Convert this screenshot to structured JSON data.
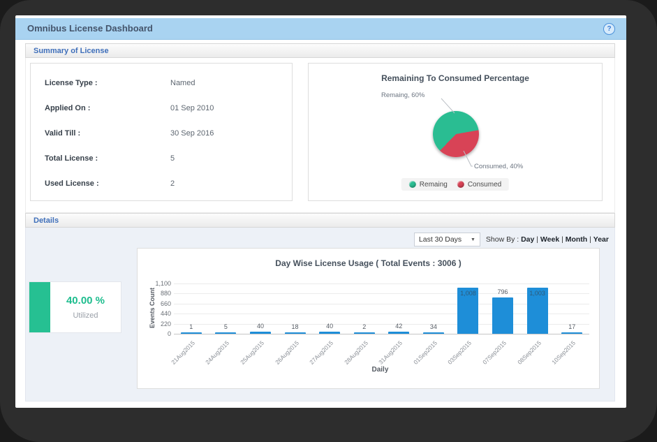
{
  "window": {
    "title": "Omnibus License Dashboard",
    "help_glyph": "?"
  },
  "summary": {
    "header": "Summary of License",
    "fields": [
      {
        "label": "License Type :",
        "value": "Named"
      },
      {
        "label": "Applied On :",
        "value": "01 Sep 2010"
      },
      {
        "label": "Valid Till :",
        "value": "30 Sep 2016"
      },
      {
        "label": "Total License :",
        "value": "5"
      },
      {
        "label": "Used License :",
        "value": "2"
      }
    ]
  },
  "details": {
    "header": "Details",
    "range_value": "Last 30 Days",
    "select_arrow": "▼",
    "show_by_label": "Show By :",
    "show_by_options": [
      "Day",
      "Week",
      "Month",
      "Year"
    ],
    "show_by_separator": " | ",
    "utilization": {
      "percent": "40.00 %",
      "label": "Utilized",
      "bar_color": "#26c092",
      "text_color": "#1ebd8e"
    }
  },
  "chart_data": [
    {
      "type": "pie",
      "title": "Remaining To Consumed Percentage",
      "slices": [
        {
          "label": "Remaing",
          "value": 60,
          "color": "#2abd92"
        },
        {
          "label": "Consumed",
          "value": 40,
          "color": "#d84356"
        }
      ],
      "annotations": [
        "Remaing, 60%",
        "Consumed, 40%"
      ],
      "legend_position": "bottom"
    },
    {
      "type": "bar",
      "title": "Day Wise License Usage ( Total Events : 3006 )",
      "categories": [
        "21Aug2015",
        "24Aug2015",
        "25Aug2015",
        "26Aug2015",
        "27Aug2015",
        "28Aug2015",
        "31Aug2015",
        "01Sep2015",
        "03Sep2015",
        "07Sep2015",
        "08Sep2015",
        "10Sep2015"
      ],
      "values": [
        1,
        5,
        40,
        18,
        40,
        2,
        42,
        34,
        1008,
        796,
        1003,
        17
      ],
      "value_labels": [
        "1",
        "5",
        "40",
        "18",
        "40",
        "2",
        "42",
        "34",
        "1,008",
        "796",
        "1,003",
        "17"
      ],
      "xlabel": "Daily",
      "ylabel": "Events Count",
      "ylim": [
        0,
        1100
      ],
      "yticks": [
        0,
        220,
        440,
        660,
        880,
        1100
      ],
      "ytick_labels": [
        "0",
        "220",
        "440",
        "660",
        "880",
        "1,100"
      ],
      "bar_color": "#1e8ed8",
      "grid": true,
      "total_events": 3006
    }
  ]
}
